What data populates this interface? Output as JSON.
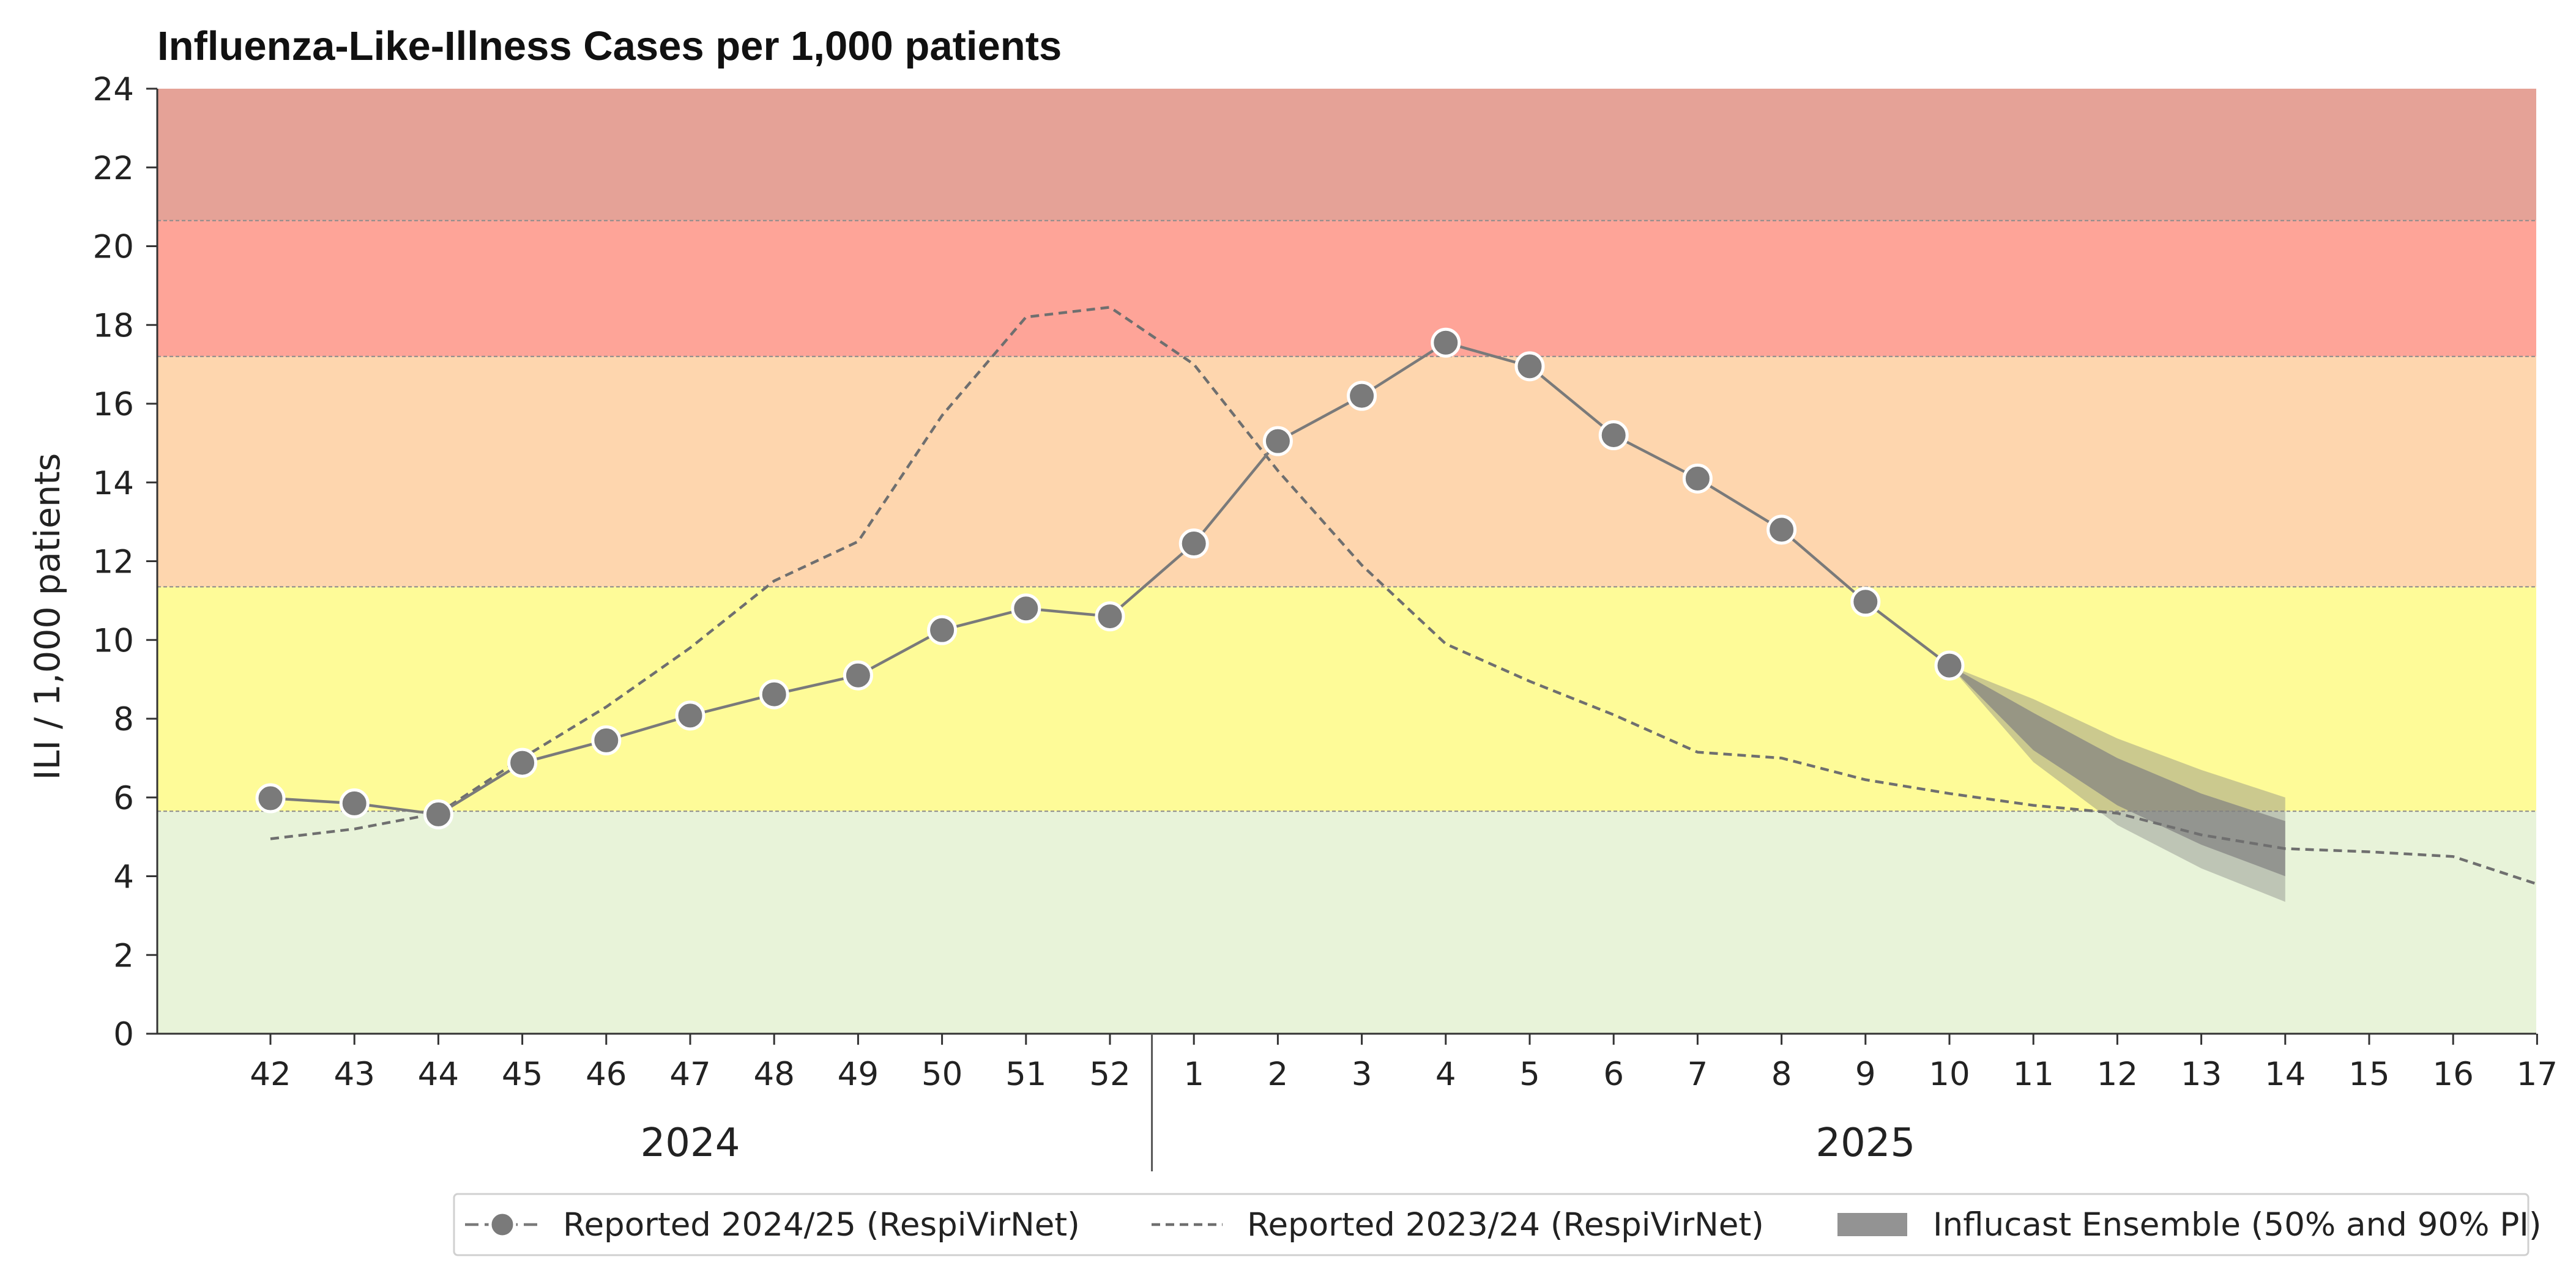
{
  "chart_data": {
    "type": "line",
    "title": "Influenza-Like-Illness Cases per 1,000 patients",
    "ylabel": "ILI / 1,000 patients",
    "xlabel": "",
    "ylim": [
      0,
      24
    ],
    "yticks": [
      0,
      2,
      4,
      6,
      8,
      10,
      12,
      14,
      16,
      18,
      20,
      22,
      24
    ],
    "x_ticks": [
      "42",
      "43",
      "44",
      "45",
      "46",
      "47",
      "48",
      "49",
      "50",
      "51",
      "52",
      "1",
      "2",
      "3",
      "4",
      "5",
      "6",
      "7",
      "8",
      "9",
      "10",
      "11",
      "12",
      "13",
      "14",
      "15",
      "16",
      "17"
    ],
    "year_labels": [
      {
        "label": "2024",
        "from_week_index": 0,
        "to_week_index": 10
      },
      {
        "label": "2025",
        "from_week_index": 11,
        "to_week_index": 27
      }
    ],
    "grid": false,
    "threshold_bands": [
      {
        "from": 0,
        "to": 5.65,
        "color": "#e8f3d9"
      },
      {
        "from": 5.65,
        "to": 11.35,
        "color": "#fefb98"
      },
      {
        "from": 11.35,
        "to": 17.2,
        "color": "#fed6ae"
      },
      {
        "from": 17.2,
        "to": 20.65,
        "color": "#fea498"
      },
      {
        "from": 20.65,
        "to": 24,
        "color": "#e5a297"
      }
    ],
    "series": [
      {
        "name": "Reported 2024/25 (RespiVirNet)",
        "style": "solid-markers",
        "color": "#7a7a7a",
        "x_index": [
          0,
          1,
          2,
          3,
          4,
          5,
          6,
          7,
          8,
          9,
          10,
          11,
          12,
          13,
          14,
          15,
          16,
          17,
          18,
          19,
          20
        ],
        "values": [
          5.98,
          5.85,
          5.57,
          6.88,
          7.45,
          8.08,
          8.62,
          9.1,
          10.25,
          10.8,
          10.6,
          12.45,
          15.05,
          16.2,
          17.55,
          16.95,
          15.2,
          14.1,
          12.8,
          10.97,
          9.35
        ]
      },
      {
        "name": "Reported 2023/24 (RespiVirNet)",
        "style": "dashed",
        "color": "#6f6f6f",
        "x_index": [
          0,
          1,
          2,
          3,
          4,
          5,
          6,
          7,
          8,
          9,
          10,
          11,
          12,
          13,
          14,
          15,
          16,
          17,
          18,
          19,
          20,
          21,
          22,
          23,
          24,
          25,
          26,
          27
        ],
        "values": [
          4.95,
          5.2,
          5.6,
          7.0,
          8.3,
          9.8,
          11.5,
          12.5,
          15.7,
          18.2,
          18.45,
          17.0,
          14.3,
          11.9,
          9.9,
          8.95,
          8.1,
          7.15,
          7.0,
          6.45,
          6.1,
          5.8,
          5.6,
          5.05,
          4.7,
          4.62,
          4.5,
          3.8
        ]
      },
      {
        "name": "Influcast Ensemble (50% and 90% PI)",
        "style": "band",
        "color": "#808080",
        "x_index": [
          20,
          21,
          22,
          23,
          24
        ],
        "pi90_low": [
          9.35,
          6.9,
          5.3,
          4.2,
          3.35
        ],
        "pi90_high": [
          9.35,
          8.5,
          7.5,
          6.7,
          6.0
        ],
        "pi50_low": [
          9.35,
          7.2,
          5.8,
          4.8,
          4.0
        ],
        "pi50_high": [
          9.35,
          8.15,
          7.0,
          6.1,
          5.4
        ]
      }
    ],
    "legend": {
      "placement": "bottom-right",
      "entries": [
        "Reported 2024/25 (RespiVirNet)",
        "Reported 2023/24 (RespiVirNet)",
        "Influcast Ensemble (50% and 90% PI)"
      ]
    }
  }
}
